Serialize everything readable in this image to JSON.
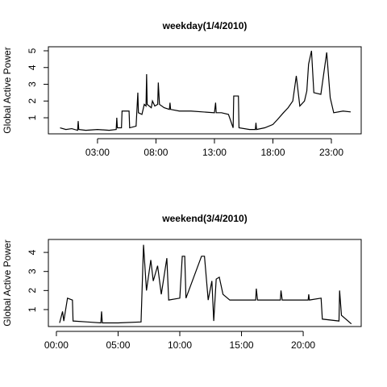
{
  "chart_data": [
    {
      "type": "line",
      "title": "weekday(1/4/2010)",
      "ylabel": "Global Active Power",
      "color": "#000000",
      "x": [
        -0.2,
        0.3,
        0.8,
        1.3,
        1.35,
        1.4,
        2,
        3,
        4,
        4.6,
        4.65,
        4.7,
        5.05,
        5.1,
        5.7,
        5.75,
        6.3,
        6.45,
        6.5,
        6.8,
        7.0,
        7.15,
        7.2,
        7.25,
        7.6,
        7.7,
        7.9,
        8.15,
        8.2,
        8.3,
        8.7,
        9.15,
        9.2,
        9.25,
        10,
        11,
        12,
        13.0,
        13.1,
        13.15,
        13.6,
        14.2,
        14.6,
        14.65,
        15.05,
        15.1,
        16,
        16.5,
        16.55,
        16.6,
        17.3,
        18,
        18.4,
        18.9,
        19.3,
        19.7,
        20.0,
        20.3,
        20.7,
        20.9,
        21.05,
        21.3,
        21.5,
        22.1,
        22.6,
        22.9,
        23.2,
        24,
        24.65
      ],
      "values": [
        0.4,
        0.3,
        0.35,
        0.25,
        0.8,
        0.3,
        0.25,
        0.3,
        0.25,
        0.3,
        1.0,
        0.4,
        0.4,
        1.4,
        1.4,
        0.4,
        0.5,
        2.5,
        1.3,
        1.2,
        1.8,
        1.7,
        3.6,
        1.8,
        1.6,
        2.0,
        1.7,
        1.8,
        3.1,
        1.8,
        1.6,
        1.5,
        1.9,
        1.5,
        1.4,
        1.4,
        1.35,
        1.3,
        1.9,
        1.3,
        1.3,
        1.2,
        0.4,
        2.3,
        2.3,
        0.4,
        0.3,
        0.3,
        0.7,
        0.3,
        0.4,
        0.6,
        0.9,
        1.3,
        1.6,
        2.0,
        3.5,
        1.7,
        2.0,
        2.6,
        4.2,
        5.0,
        2.5,
        2.4,
        4.9,
        2.2,
        1.3,
        1.4,
        1.35
      ],
      "xlim": [
        -1.2,
        25.55
      ],
      "ylim": [
        0.04,
        5.24
      ],
      "xticks": [
        {
          "value": 3,
          "label": "03:00"
        },
        {
          "value": 8,
          "label": "08:00"
        },
        {
          "value": 13,
          "label": "13:00"
        },
        {
          "value": 18,
          "label": "18:00"
        },
        {
          "value": 23,
          "label": "23:00"
        }
      ],
      "yticks": [
        1,
        2,
        3,
        4,
        5
      ]
    },
    {
      "type": "line",
      "title": "weekend(3/4/2010)",
      "ylabel": "Global Active Power",
      "color": "#000000",
      "x": [
        0.26,
        0.5,
        0.6,
        0.9,
        1.3,
        1.35,
        2.5,
        3.6,
        3.66,
        3.72,
        5,
        6.86,
        7.06,
        7.3,
        7.65,
        7.85,
        8.2,
        8.5,
        8.95,
        9.1,
        10.0,
        10.2,
        10.4,
        10.5,
        11.76,
        12.0,
        12.3,
        12.6,
        12.75,
        12.95,
        13.2,
        13.5,
        14.05,
        15,
        16.15,
        16.2,
        16.3,
        17,
        18.15,
        18.2,
        18.3,
        19.5,
        20.4,
        20.45,
        20.5,
        21.45,
        21.55,
        22.9,
        22.95,
        23.1,
        23.9
      ],
      "values": [
        0.3,
        0.9,
        0.4,
        1.6,
        1.5,
        0.4,
        0.35,
        0.3,
        0.9,
        0.3,
        0.3,
        0.35,
        4.4,
        2.0,
        3.6,
        2.5,
        3.3,
        1.8,
        3.7,
        1.5,
        1.6,
        3.8,
        3.8,
        1.6,
        3.8,
        3.8,
        1.5,
        2.5,
        0.4,
        2.6,
        2.7,
        1.8,
        1.5,
        1.5,
        1.5,
        2.1,
        1.5,
        1.5,
        1.5,
        2.0,
        1.5,
        1.5,
        1.5,
        1.8,
        1.5,
        1.6,
        0.5,
        0.4,
        2.0,
        0.7,
        0.25
      ],
      "xlim": [
        -0.65,
        24.7
      ],
      "ylim": [
        0.11,
        4.68
      ],
      "xticks": [
        {
          "value": 0,
          "label": "00:00"
        },
        {
          "value": 5,
          "label": "05:00"
        },
        {
          "value": 10,
          "label": "10:00"
        },
        {
          "value": 15,
          "label": "15:00"
        },
        {
          "value": 20,
          "label": "20:00"
        }
      ],
      "yticks": [
        1,
        2,
        3,
        4
      ]
    }
  ]
}
